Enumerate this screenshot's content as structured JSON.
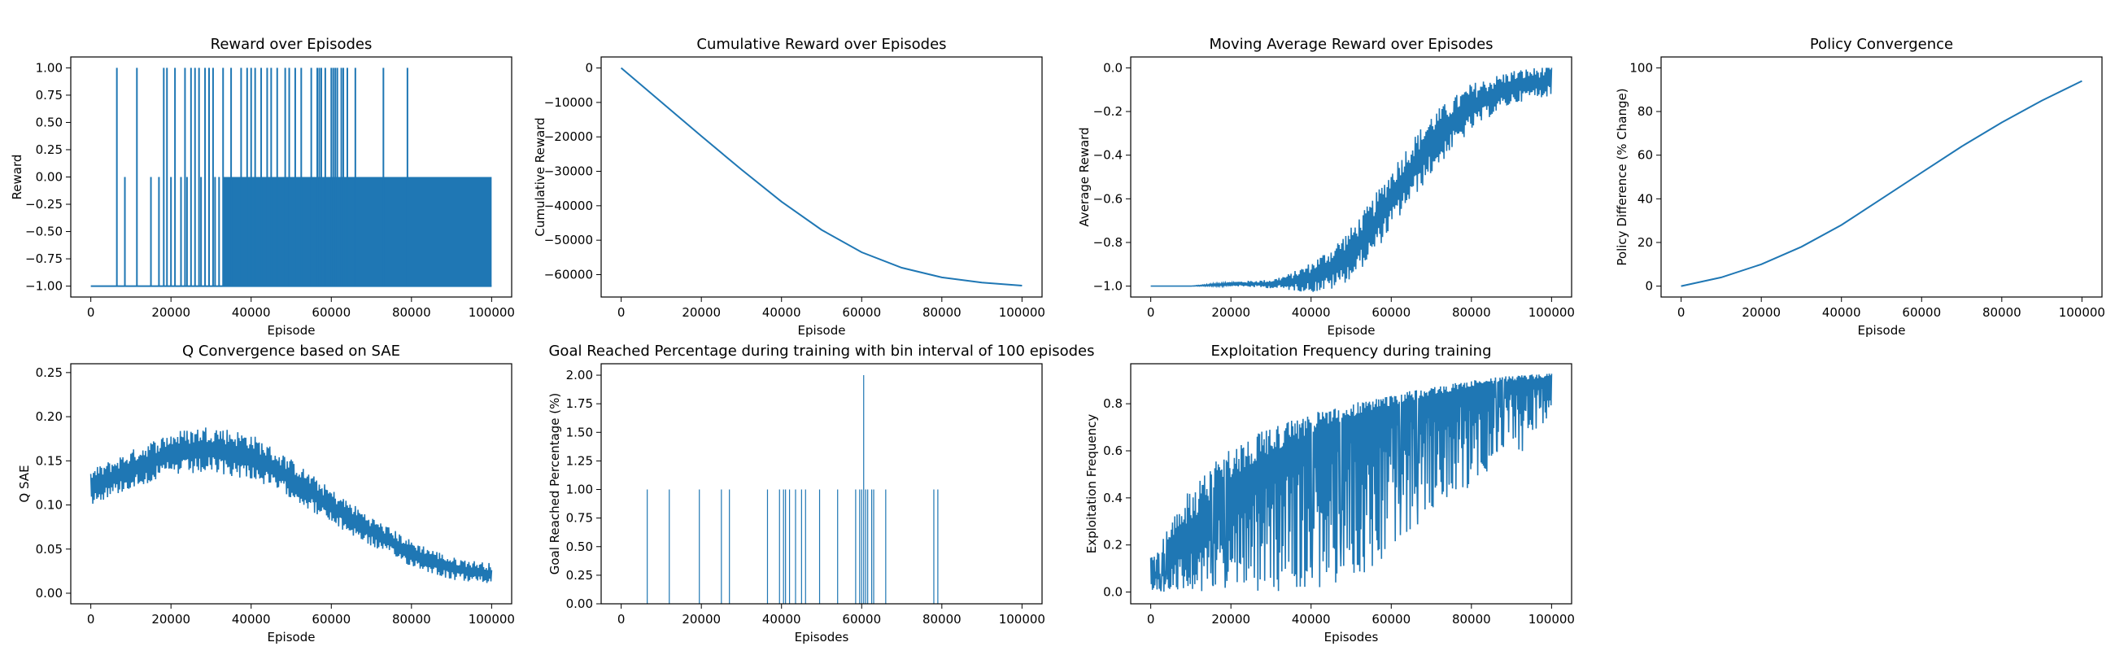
{
  "figure": {
    "suptitle": "",
    "line_color": "#1f77b4"
  },
  "chart_data": [
    {
      "id": "reward",
      "type": "line",
      "title": "Reward over Episodes",
      "xlabel": "Episode",
      "ylabel": "Reward",
      "xlim": [
        -5000,
        105000
      ],
      "ylim": [
        -1.1,
        1.1
      ],
      "xticks": [
        0,
        20000,
        40000,
        60000,
        80000,
        100000
      ],
      "xtick_labels": [
        "0",
        "20000",
        "40000",
        "60000",
        "80000",
        "100000"
      ],
      "yticks": [
        -1.0,
        -0.75,
        -0.5,
        -0.25,
        0.0,
        0.25,
        0.5,
        0.75,
        1.0
      ],
      "ytick_labels": [
        "−1.00",
        "−0.75",
        "−0.50",
        "−0.25",
        "0.00",
        "0.25",
        "0.50",
        "0.75",
        "1.00"
      ],
      "series": [
        {
          "filled_band": {
            "x_start": 33000,
            "x_end": 100000,
            "y_low": -1.0,
            "y_high": 0.0
          },
          "baseline": {
            "x": [
              0,
              100000
            ],
            "y": -1.0
          },
          "spikes": {
            "to_one": [
              6500,
              11500,
              18200,
              19000,
              21000,
              23500,
              25000,
              26000,
              27000,
              28500,
              29500,
              30500,
              33000,
              35000,
              37500,
              39000,
              40000,
              41000,
              42500,
              44000,
              45000,
              46500,
              48500,
              49500,
              51000,
              52500,
              55000,
              56500,
              57000,
              57500,
              58500,
              60000,
              60500,
              61000,
              61500,
              62500,
              63000,
              64000,
              66000,
              73000,
              79000
            ],
            "to_zero": [
              8500,
              15000,
              17000,
              20000,
              22500,
              24000,
              27500,
              31000,
              32000
            ]
          }
        }
      ]
    },
    {
      "id": "cumulative",
      "type": "line",
      "title": "Cumulative Reward over Episodes",
      "xlabel": "Episode",
      "ylabel": "Cumulative Reward",
      "xlim": [
        -5000,
        105000
      ],
      "ylim": [
        -66500,
        3200
      ],
      "xticks": [
        0,
        20000,
        40000,
        60000,
        80000,
        100000
      ],
      "xtick_labels": [
        "0",
        "20000",
        "40000",
        "60000",
        "80000",
        "100000"
      ],
      "yticks": [
        -60000,
        -50000,
        -40000,
        -30000,
        -20000,
        -10000,
        0
      ],
      "ytick_labels": [
        "−60000",
        "−50000",
        "−40000",
        "−30000",
        "−20000",
        "−10000",
        "0"
      ],
      "series": [
        {
          "x": [
            0,
            10000,
            20000,
            30000,
            40000,
            50000,
            60000,
            70000,
            80000,
            90000,
            100000
          ],
          "y": [
            0,
            -9900,
            -19800,
            -29500,
            -38800,
            -47000,
            -53500,
            -58000,
            -60800,
            -62300,
            -63200
          ]
        }
      ]
    },
    {
      "id": "moving-average",
      "type": "line",
      "title": "Moving Average Reward over Episodes",
      "xlabel": "Episode",
      "ylabel": "Average Reward",
      "xlim": [
        -5000,
        105000
      ],
      "ylim": [
        -1.05,
        0.05
      ],
      "xticks": [
        0,
        20000,
        40000,
        60000,
        80000,
        100000
      ],
      "xtick_labels": [
        "0",
        "20000",
        "40000",
        "60000",
        "80000",
        "100000"
      ],
      "yticks": [
        -1.0,
        -0.8,
        -0.6,
        -0.4,
        -0.2,
        0.0
      ],
      "ytick_labels": [
        "−1.0",
        "−0.8",
        "−0.6",
        "−0.4",
        "−0.2",
        "0.0"
      ],
      "series": [
        {
          "x": [
            0,
            10000,
            20000,
            30000,
            35000,
            40000,
            45000,
            50000,
            55000,
            60000,
            65000,
            70000,
            75000,
            80000,
            85000,
            90000,
            95000,
            100000
          ],
          "y": [
            -1.0,
            -1.0,
            -0.99,
            -0.99,
            -0.98,
            -0.96,
            -0.92,
            -0.85,
            -0.74,
            -0.6,
            -0.47,
            -0.35,
            -0.26,
            -0.18,
            -0.13,
            -0.09,
            -0.07,
            -0.06
          ],
          "noise_band": [
            0,
            0,
            0.01,
            0.02,
            0.04,
            0.07,
            0.1,
            0.12,
            0.13,
            0.14,
            0.14,
            0.14,
            0.12,
            0.11,
            0.09,
            0.08,
            0.07,
            0.07
          ]
        }
      ]
    },
    {
      "id": "policy",
      "type": "line",
      "title": "Policy Convergence",
      "xlabel": "Episode",
      "ylabel": "Policy Difference (% Change)",
      "xlim": [
        -5000,
        105000
      ],
      "ylim": [
        -5,
        105
      ],
      "xticks": [
        0,
        20000,
        40000,
        60000,
        80000,
        100000
      ],
      "xtick_labels": [
        "0",
        "20000",
        "40000",
        "60000",
        "80000",
        "100000"
      ],
      "yticks": [
        0,
        20,
        40,
        60,
        80,
        100
      ],
      "ytick_labels": [
        "0",
        "20",
        "40",
        "60",
        "80",
        "100"
      ],
      "series": [
        {
          "x": [
            0,
            10000,
            20000,
            30000,
            40000,
            50000,
            60000,
            70000,
            80000,
            90000,
            100000
          ],
          "y": [
            0,
            4,
            10,
            18,
            28,
            40,
            52,
            64,
            75,
            85,
            94
          ]
        }
      ]
    },
    {
      "id": "q-convergence",
      "type": "line",
      "title": "Q Convergence based on SAE",
      "xlabel": "Episode",
      "ylabel": "Q SAE",
      "xlim": [
        -5000,
        105000
      ],
      "ylim": [
        -0.012,
        0.26
      ],
      "xticks": [
        0,
        20000,
        40000,
        60000,
        80000,
        100000
      ],
      "xtick_labels": [
        "0",
        "20000",
        "40000",
        "60000",
        "80000",
        "100000"
      ],
      "yticks": [
        0.0,
        0.05,
        0.1,
        0.15,
        0.2,
        0.25
      ],
      "ytick_labels": [
        "0.00",
        "0.05",
        "0.10",
        "0.15",
        "0.20",
        "0.25"
      ],
      "series": [
        {
          "x": [
            0,
            10000,
            20000,
            30000,
            40000,
            50000,
            60000,
            70000,
            80000,
            90000,
            100000
          ],
          "y": [
            0.12,
            0.14,
            0.158,
            0.163,
            0.155,
            0.13,
            0.098,
            0.07,
            0.045,
            0.028,
            0.022
          ],
          "noise_band": [
            0.02,
            0.022,
            0.025,
            0.028,
            0.026,
            0.022,
            0.02,
            0.017,
            0.015,
            0.013,
            0.012
          ]
        }
      ]
    },
    {
      "id": "goal-reached",
      "type": "bar",
      "title": "Goal Reached Percentage during training with bin interval of 100 episodes",
      "xlabel": "Episodes",
      "ylabel": "Goal Reached Percentage (%)",
      "xlim": [
        -5000,
        105000
      ],
      "ylim": [
        0,
        2.1
      ],
      "xticks": [
        0,
        20000,
        40000,
        60000,
        80000,
        100000
      ],
      "xtick_labels": [
        "0",
        "20000",
        "40000",
        "60000",
        "80000",
        "100000"
      ],
      "yticks": [
        0.0,
        0.25,
        0.5,
        0.75,
        1.0,
        1.25,
        1.5,
        1.75,
        2.0
      ],
      "ytick_labels": [
        "0.00",
        "0.25",
        "0.50",
        "0.75",
        "1.00",
        "1.25",
        "1.50",
        "1.75",
        "2.00"
      ],
      "series": [
        {
          "x": [
            6500,
            12000,
            19500,
            25000,
            27000,
            36500,
            39500,
            40500,
            41000,
            42000,
            43500,
            45000,
            46000,
            49500,
            54000,
            58500,
            59500,
            60000,
            60500,
            61000,
            61500,
            62500,
            63000,
            66000,
            78000,
            79000
          ],
          "y": [
            1,
            1,
            1,
            1,
            1,
            1,
            1,
            1,
            1,
            1,
            1,
            1,
            1,
            1,
            1,
            1,
            1,
            1,
            2,
            1,
            1,
            1,
            1,
            1,
            1,
            1
          ]
        }
      ]
    },
    {
      "id": "exploitation",
      "type": "line",
      "title": "Exploitation Frequency during training",
      "xlabel": "Episodes",
      "ylabel": "Exploitation Frequency",
      "xlim": [
        -5000,
        105000
      ],
      "ylim": [
        -0.05,
        0.97
      ],
      "xticks": [
        0,
        20000,
        40000,
        60000,
        80000,
        100000
      ],
      "xtick_labels": [
        "0",
        "20000",
        "40000",
        "60000",
        "80000",
        "100000"
      ],
      "yticks": [
        0.0,
        0.2,
        0.4,
        0.6,
        0.8
      ],
      "ytick_labels": [
        "0.0",
        "0.2",
        "0.4",
        "0.6",
        "0.8"
      ],
      "series": [
        {
          "x": [
            0,
            10000,
            20000,
            30000,
            40000,
            50000,
            60000,
            70000,
            80000,
            90000,
            100000
          ],
          "y": [
            0.05,
            0.2,
            0.4,
            0.52,
            0.62,
            0.7,
            0.76,
            0.81,
            0.85,
            0.88,
            0.9
          ],
          "upper": [
            0.15,
            0.45,
            0.62,
            0.7,
            0.76,
            0.8,
            0.84,
            0.87,
            0.9,
            0.92,
            0.93
          ],
          "lower": [
            0.0,
            0.0,
            0.0,
            0.0,
            0.0,
            0.05,
            0.15,
            0.35,
            0.45,
            0.55,
            0.7
          ]
        }
      ]
    }
  ]
}
